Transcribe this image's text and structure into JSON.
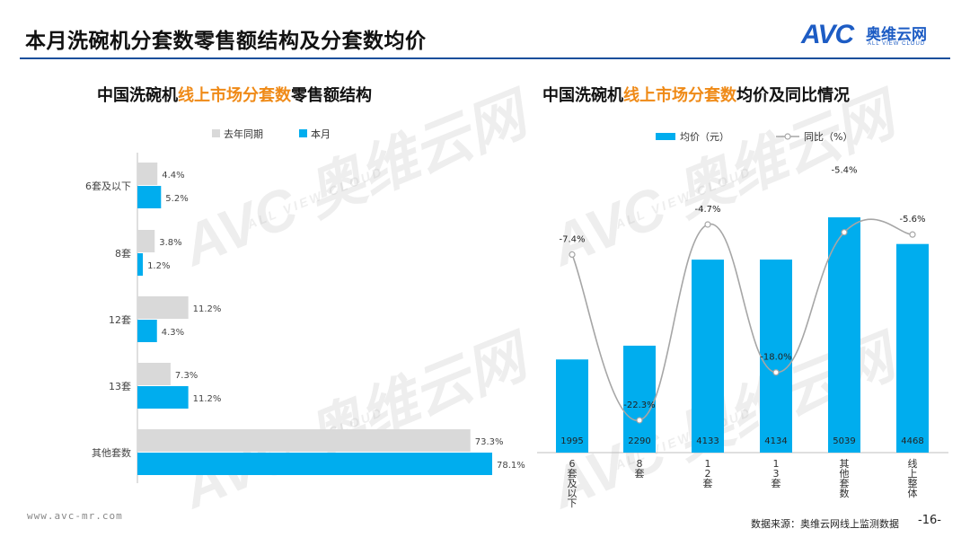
{
  "header": {
    "title": "本月洗碗机分套数零售额结构及分套数均价",
    "logo_avc": "AVC",
    "logo_cn": "奥维云网",
    "logo_en": "ALL VIEW CLOUD"
  },
  "watermark": {
    "big": "AVC 奥维云网",
    "small": "ALL VIEW CLOUD"
  },
  "left_chart_title": {
    "part1": "中国洗碗机",
    "part2": "线上市场分套数",
    "part3": "零售额结构"
  },
  "right_chart_title": {
    "part1": "中国洗碗机",
    "part2": "线上市场分套数",
    "part3": "均价及同比情况"
  },
  "footer": {
    "website": "www.avc-mr.com",
    "source": "数据来源：奥维云网线上监测数据",
    "page": "-16-"
  },
  "colors": {
    "current": "#00adee",
    "last_year": "#d9d9d9",
    "line": "#a6a6a6",
    "accent": "#ef8a17",
    "brand": "#1d5cc4"
  },
  "chart_data": [
    {
      "type": "bar",
      "orientation": "horizontal",
      "categories": [
        "6套及以下",
        "8套",
        "12套",
        "13套",
        "其他套数"
      ],
      "series": [
        {
          "name": "去年同期",
          "values": [
            4.4,
            3.8,
            11.2,
            7.3,
            73.3
          ],
          "labels": [
            "4.4%",
            "3.8%",
            "11.2%",
            "7.3%",
            "73.3%"
          ]
        },
        {
          "name": "本月",
          "values": [
            5.2,
            1.2,
            4.3,
            11.2,
            78.1
          ],
          "labels": [
            "5.2%",
            "1.2%",
            "4.3%",
            "11.2%",
            "78.1%"
          ]
        }
      ],
      "legend": "top",
      "grid": false
    },
    {
      "type": "bar",
      "categories": [
        "6套及以下",
        "8套",
        "12套",
        "13套",
        "其他套数",
        "线上整体"
      ],
      "series": [
        {
          "name": "均价（元）",
          "type": "bar",
          "values": [
            1995,
            2290,
            4133,
            4134,
            5039,
            4468
          ],
          "labels": [
            "1995",
            "2290",
            "4133",
            "4134",
            "5039",
            "4468"
          ]
        },
        {
          "name": "同比（%）",
          "type": "line",
          "values": [
            -7.4,
            -22.3,
            -4.7,
            -18.0,
            -5.4,
            -5.6
          ],
          "labels": [
            "-7.4%",
            "-22.3%",
            "-4.7%",
            "-18.0%",
            "-5.4%",
            "-5.6%"
          ]
        }
      ],
      "legend": "top",
      "grid": false
    }
  ]
}
